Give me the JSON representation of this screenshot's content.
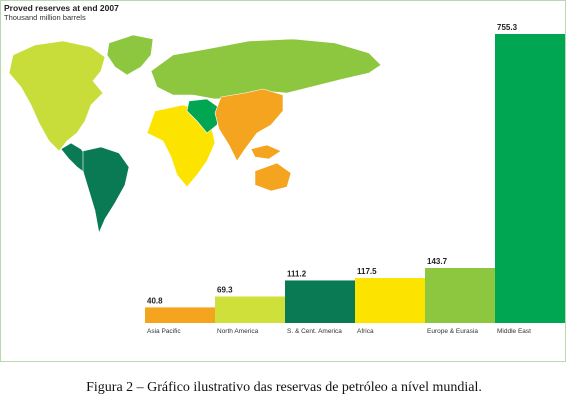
{
  "chart_data": {
    "type": "bar",
    "title": "Proved reserves at end 2007",
    "subtitle": "Thousand million barrels",
    "categories": [
      "Asia Pacific",
      "North America",
      "S. & Cent. America",
      "Africa",
      "Europe & Eurasia",
      "Middle East"
    ],
    "values": [
      40.8,
      69.3,
      111.2,
      117.5,
      143.7,
      755.3
    ],
    "value_labels": [
      "40.8",
      "69.3",
      "111.2",
      "117.5",
      "143.7",
      "755.3"
    ],
    "colors": [
      "#f4a41e",
      "#cfe03a",
      "#0a7a55",
      "#fde400",
      "#8dc63f",
      "#00a651"
    ],
    "ylim": [
      0,
      755.3
    ],
    "grid": false,
    "legend": "none"
  },
  "map": {
    "region_colors": {
      "north_america": "#c9dd3a",
      "greenland": "#8dc63f",
      "south_america": "#0a7a55",
      "central_america": "#0a7a55",
      "europe_eurasia": "#8dc63f",
      "africa": "#fde400",
      "middle_east": "#00a651",
      "asia_pacific": "#f4a41e"
    }
  },
  "caption": "Figura 2 – Gráfico ilustrativo  das reservas de petróleo a nível mundial."
}
